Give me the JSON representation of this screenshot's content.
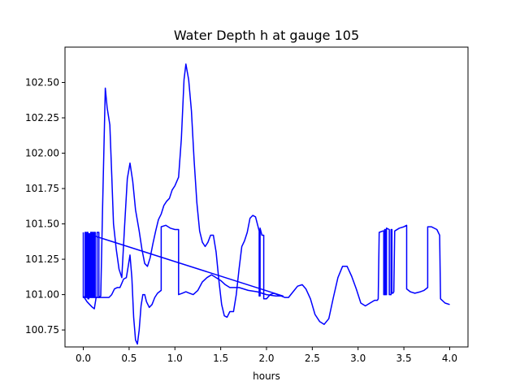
{
  "chart_data": {
    "type": "line",
    "title": "Water Depth h at gauge 105",
    "xlabel": "hours",
    "ylabel": "",
    "xlim": [
      -0.2,
      4.2
    ],
    "ylim": [
      100.63,
      102.75
    ],
    "x_ticks": [
      0.0,
      0.5,
      1.0,
      1.5,
      2.0,
      2.5,
      3.0,
      3.5,
      4.0
    ],
    "x_tick_labels": [
      "0.0",
      "0.5",
      "1.0",
      "1.5",
      "2.0",
      "2.5",
      "3.0",
      "3.5",
      "4.0"
    ],
    "y_ticks": [
      100.75,
      101.0,
      101.25,
      101.5,
      101.75,
      102.0,
      102.25,
      102.5
    ],
    "y_tick_labels": [
      "100.75",
      "101.00",
      "101.25",
      "101.50",
      "101.75",
      "102.00",
      "102.25",
      "102.50"
    ],
    "grid": false,
    "series": [
      {
        "color": "#0000ff",
        "points": [
          [
            0.0,
            101.44
          ],
          [
            0.0,
            100.98
          ],
          [
            0.02,
            100.98
          ],
          [
            0.02,
            101.44
          ],
          [
            0.03,
            101.44
          ],
          [
            0.03,
            100.98
          ],
          [
            0.04,
            100.98
          ],
          [
            0.04,
            101.44
          ],
          [
            0.05,
            101.44
          ],
          [
            0.05,
            100.97
          ],
          [
            0.06,
            100.97
          ],
          [
            0.06,
            101.43
          ],
          [
            0.07,
            101.43
          ],
          [
            0.07,
            100.98
          ],
          [
            0.08,
            100.98
          ],
          [
            0.08,
            101.44
          ],
          [
            0.09,
            101.44
          ],
          [
            0.09,
            100.98
          ],
          [
            0.1,
            100.98
          ],
          [
            0.1,
            101.44
          ],
          [
            0.11,
            101.44
          ],
          [
            0.11,
            100.98
          ],
          [
            0.12,
            100.98
          ],
          [
            0.12,
            101.44
          ],
          [
            0.13,
            101.44
          ],
          [
            0.13,
            100.98
          ],
          [
            0.15,
            100.98
          ],
          [
            0.15,
            101.44
          ],
          [
            0.17,
            101.44
          ],
          [
            0.17,
            100.98
          ],
          [
            0.19,
            100.99
          ],
          [
            0.21,
            101.6
          ],
          [
            0.24,
            102.46
          ],
          [
            0.26,
            102.32
          ],
          [
            0.29,
            102.2
          ],
          [
            0.31,
            101.85
          ],
          [
            0.33,
            101.5
          ],
          [
            0.36,
            101.32
          ],
          [
            0.39,
            101.18
          ],
          [
            0.42,
            101.12
          ],
          [
            0.45,
            101.48
          ],
          [
            0.48,
            101.82
          ],
          [
            0.51,
            101.93
          ],
          [
            0.54,
            101.8
          ],
          [
            0.57,
            101.6
          ],
          [
            0.61,
            101.45
          ],
          [
            0.64,
            101.32
          ],
          [
            0.67,
            101.22
          ],
          [
            0.7,
            101.2
          ],
          [
            0.73,
            101.26
          ],
          [
            0.76,
            101.36
          ],
          [
            0.79,
            101.45
          ],
          [
            0.82,
            101.53
          ],
          [
            0.85,
            101.57
          ],
          [
            0.88,
            101.63
          ],
          [
            0.91,
            101.66
          ],
          [
            0.94,
            101.68
          ],
          [
            0.97,
            101.74
          ],
          [
            1.0,
            101.77
          ],
          [
            1.04,
            101.83
          ],
          [
            1.07,
            102.1
          ],
          [
            1.1,
            102.52
          ],
          [
            1.12,
            102.63
          ],
          [
            1.15,
            102.52
          ],
          [
            1.18,
            102.3
          ],
          [
            1.21,
            101.95
          ],
          [
            1.24,
            101.65
          ],
          [
            1.27,
            101.45
          ],
          [
            1.3,
            101.37
          ],
          [
            1.33,
            101.34
          ],
          [
            1.36,
            101.37
          ],
          [
            1.39,
            101.42
          ],
          [
            1.42,
            101.42
          ],
          [
            1.45,
            101.3
          ],
          [
            1.48,
            101.1
          ],
          [
            1.51,
            100.93
          ],
          [
            1.54,
            100.85
          ],
          [
            1.57,
            100.84
          ],
          [
            1.6,
            100.88
          ],
          [
            1.64,
            100.88
          ],
          [
            1.67,
            101.0
          ],
          [
            1.7,
            101.18
          ],
          [
            1.73,
            101.34
          ],
          [
            1.76,
            101.38
          ],
          [
            1.79,
            101.44
          ],
          [
            1.82,
            101.54
          ],
          [
            1.85,
            101.56
          ],
          [
            1.88,
            101.55
          ],
          [
            1.92,
            101.45
          ],
          [
            1.92,
            100.99
          ],
          [
            1.93,
            100.99
          ],
          [
            1.93,
            101.47
          ],
          [
            1.95,
            101.42
          ],
          [
            1.97,
            101.42
          ],
          [
            1.97,
            100.97
          ],
          [
            2.0,
            100.97
          ],
          [
            2.04,
            101.0
          ],
          [
            2.08,
            101.01
          ],
          [
            2.12,
            101.0
          ],
          [
            2.16,
            100.99
          ],
          [
            2.2,
            100.98
          ],
          [
            2.24,
            100.98
          ],
          [
            2.29,
            101.02
          ],
          [
            2.34,
            101.06
          ],
          [
            2.39,
            101.07
          ],
          [
            2.43,
            101.04
          ],
          [
            2.48,
            100.97
          ],
          [
            2.53,
            100.86
          ],
          [
            2.58,
            100.81
          ],
          [
            2.63,
            100.79
          ],
          [
            2.68,
            100.83
          ],
          [
            2.73,
            100.98
          ],
          [
            2.78,
            101.12
          ],
          [
            2.83,
            101.2
          ],
          [
            2.88,
            101.2
          ],
          [
            2.93,
            101.13
          ],
          [
            2.98,
            101.04
          ],
          [
            3.03,
            100.94
          ],
          [
            3.08,
            100.92
          ],
          [
            3.13,
            100.94
          ],
          [
            3.18,
            100.96
          ],
          [
            3.21,
            100.96
          ],
          [
            3.22,
            100.97
          ],
          [
            3.23,
            101.44
          ],
          [
            3.27,
            101.45
          ],
          [
            3.28,
            101.45
          ],
          [
            3.28,
            101.0
          ],
          [
            3.29,
            101.0
          ],
          [
            3.29,
            101.46
          ],
          [
            3.3,
            101.46
          ],
          [
            3.3,
            101.0
          ],
          [
            3.31,
            101.0
          ],
          [
            3.31,
            101.47
          ],
          [
            3.34,
            101.46
          ],
          [
            3.34,
            101.0
          ],
          [
            3.36,
            101.0
          ],
          [
            3.36,
            101.46
          ],
          [
            3.37,
            101.46
          ],
          [
            3.37,
            101.01
          ],
          [
            3.38,
            101.01
          ],
          [
            3.39,
            101.02
          ],
          [
            3.4,
            101.45
          ],
          [
            3.45,
            101.47
          ],
          [
            3.5,
            101.48
          ],
          [
            3.53,
            101.49
          ],
          [
            3.53,
            101.04
          ],
          [
            3.57,
            101.02
          ],
          [
            3.62,
            101.01
          ],
          [
            3.68,
            101.02
          ],
          [
            3.72,
            101.03
          ],
          [
            3.76,
            101.05
          ],
          [
            3.76,
            101.48
          ],
          [
            3.8,
            101.48
          ],
          [
            3.86,
            101.46
          ],
          [
            3.89,
            101.42
          ],
          [
            3.9,
            100.97
          ],
          [
            3.95,
            100.94
          ],
          [
            4.0,
            100.93
          ]
        ]
      },
      {
        "color": "#0000ff",
        "points": [
          [
            0.0,
            100.99
          ],
          [
            0.04,
            100.95
          ],
          [
            0.07,
            100.93
          ],
          [
            0.1,
            100.91
          ],
          [
            0.12,
            100.9
          ],
          [
            0.14,
            100.98
          ],
          [
            0.17,
            100.98
          ],
          [
            0.2,
            100.98
          ],
          [
            0.25,
            100.98
          ],
          [
            0.28,
            100.98
          ],
          [
            0.31,
            101.0
          ],
          [
            0.34,
            101.04
          ],
          [
            0.37,
            101.05
          ],
          [
            0.4,
            101.05
          ],
          [
            0.42,
            101.08
          ],
          [
            0.44,
            101.11
          ],
          [
            0.47,
            101.12
          ],
          [
            0.49,
            101.2
          ],
          [
            0.51,
            101.28
          ],
          [
            0.53,
            101.12
          ],
          [
            0.55,
            100.84
          ],
          [
            0.57,
            100.68
          ],
          [
            0.59,
            100.65
          ],
          [
            0.61,
            100.75
          ],
          [
            0.63,
            100.92
          ],
          [
            0.65,
            101.0
          ],
          [
            0.67,
            101.0
          ],
          [
            0.69,
            100.95
          ],
          [
            0.72,
            100.91
          ],
          [
            0.75,
            100.93
          ],
          [
            0.78,
            100.98
          ],
          [
            0.81,
            101.01
          ],
          [
            0.85,
            101.03
          ],
          [
            0.85,
            101.48
          ],
          [
            0.9,
            101.49
          ],
          [
            0.95,
            101.47
          ],
          [
            1.0,
            101.46
          ],
          [
            1.04,
            101.46
          ],
          [
            1.04,
            101.0
          ],
          [
            1.08,
            101.01
          ],
          [
            1.12,
            101.02
          ],
          [
            1.16,
            101.01
          ],
          [
            1.2,
            101.0
          ],
          [
            1.25,
            101.03
          ],
          [
            1.3,
            101.09
          ],
          [
            1.35,
            101.12
          ],
          [
            1.4,
            101.14
          ],
          [
            1.45,
            101.12
          ],
          [
            1.5,
            101.1
          ],
          [
            1.55,
            101.07
          ],
          [
            1.6,
            101.05
          ],
          [
            1.7,
            101.05
          ],
          [
            1.8,
            101.03
          ],
          [
            1.9,
            101.02
          ],
          [
            2.0,
            101.0
          ],
          [
            2.1,
            100.99
          ],
          [
            2.18,
            100.99
          ],
          [
            0.05,
            101.43
          ]
        ]
      }
    ]
  }
}
